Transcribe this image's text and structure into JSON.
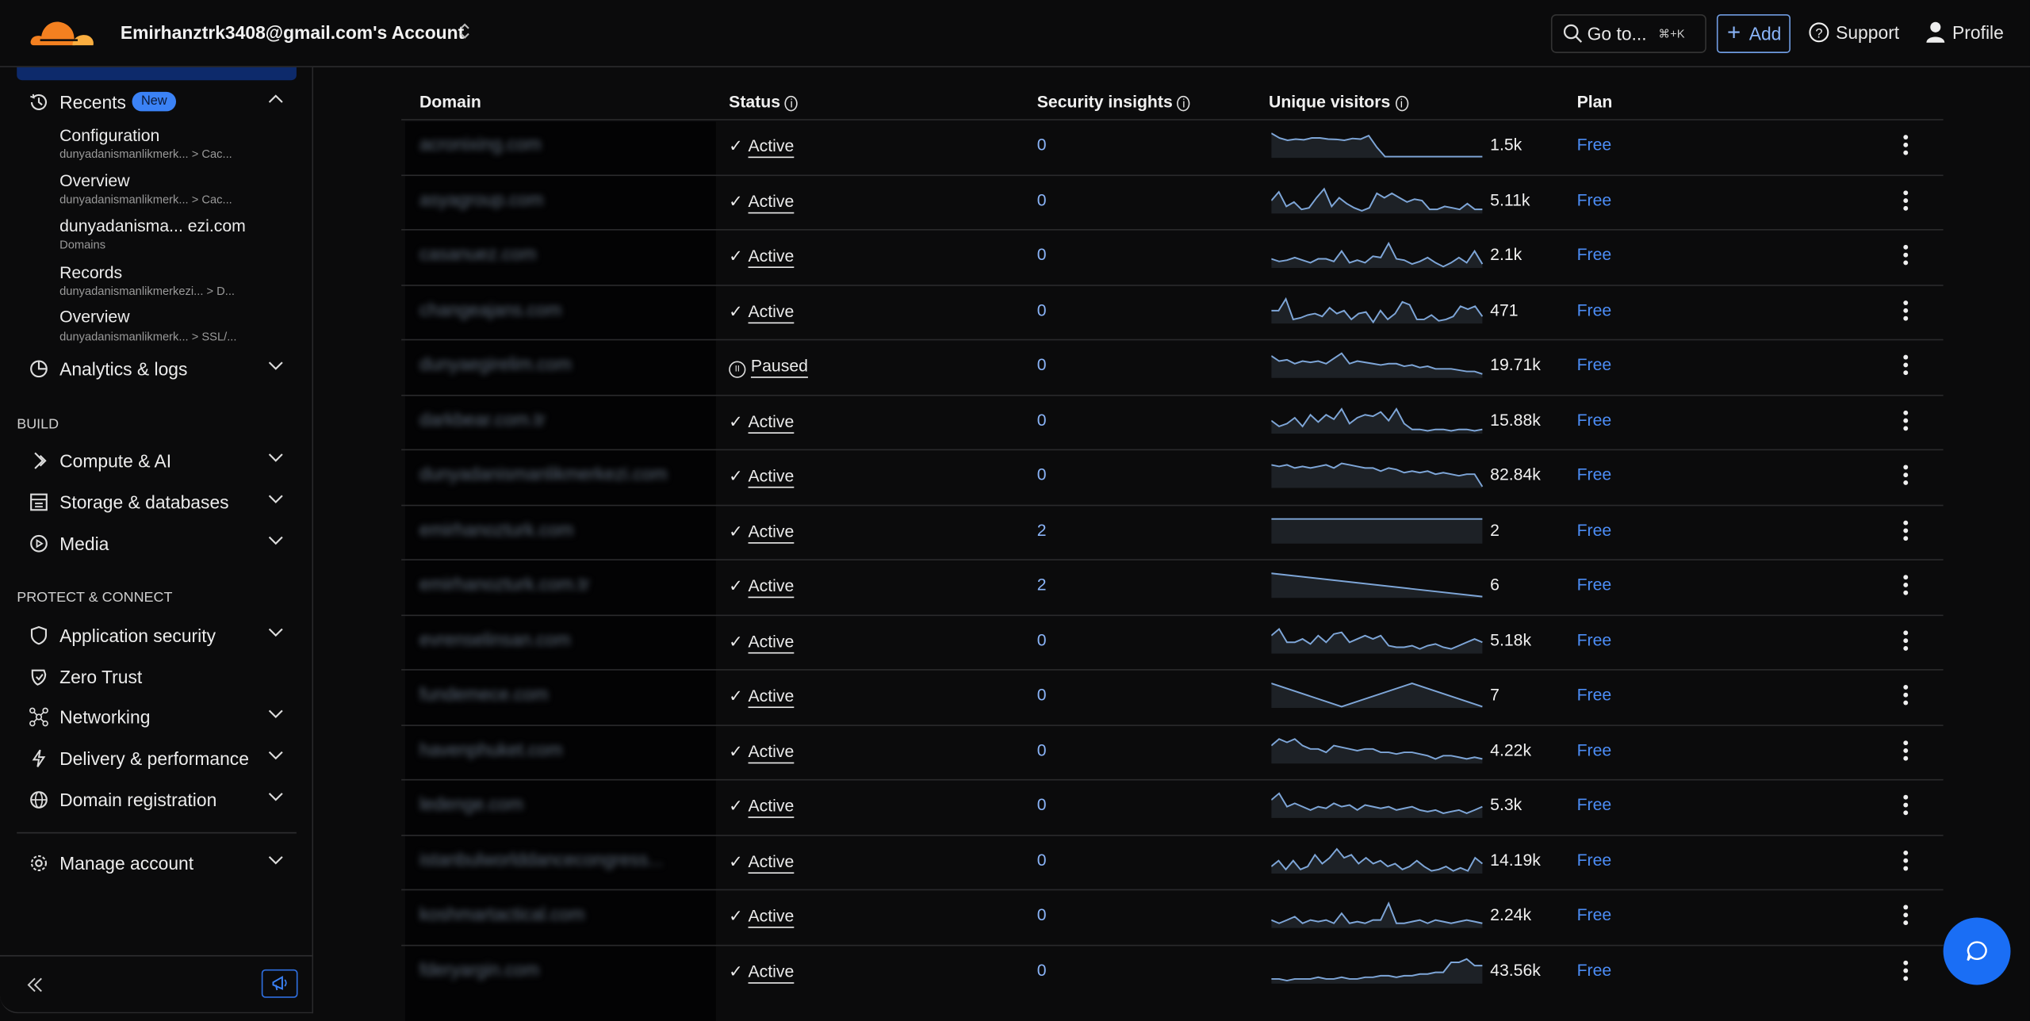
{
  "header": {
    "account": "Emirhanztrk3408@gmail.com's Account",
    "goto_label": "Go to...",
    "goto_shortcut": "⌘+K",
    "add_label": "Add",
    "support_label": "Support",
    "profile_label": "Profile",
    "brand_color": "#f38020"
  },
  "sidebar": {
    "recents": {
      "label": "Recents",
      "badge": "New",
      "items": [
        {
          "title": "Configuration",
          "subtitle": "dunyadanismanlikmerk... > Cac..."
        },
        {
          "title": "Overview",
          "subtitle": "dunyadanismanlikmerk... > Cac..."
        },
        {
          "title": "dunyadanisma... ezi.com",
          "subtitle": "Domains"
        },
        {
          "title": "Records",
          "subtitle": "dunyadanismanlikmerkezi... > D..."
        },
        {
          "title": "Overview",
          "subtitle": "dunyadanismanlikmerk... > SSL/..."
        }
      ]
    },
    "analytics": "Analytics & logs",
    "build_heading": "BUILD",
    "build": [
      "Compute & AI",
      "Storage & databases",
      "Media"
    ],
    "protect_heading": "PROTECT & CONNECT",
    "protect": [
      "Application security",
      "Zero Trust",
      "Networking",
      "Delivery & performance",
      "Domain registration"
    ],
    "manage": "Manage account"
  },
  "table": {
    "columns": {
      "domain": "Domain",
      "status": "Status",
      "security": "Security insights",
      "visitors": "Unique visitors",
      "plan": "Plan"
    },
    "rows": [
      {
        "domain": "acronixing.com",
        "status": "Active",
        "insights": "0",
        "visitors": "1.5k",
        "plan": "Free",
        "trend": [
          10,
          8,
          7,
          7.5,
          7.2,
          8,
          8,
          7.5,
          7.4,
          7,
          7.8,
          7.5,
          9,
          4,
          0,
          0,
          0,
          0,
          0,
          0,
          0,
          0,
          0,
          0,
          0,
          0,
          0
        ]
      },
      {
        "domain": "asyagroup.com",
        "status": "Active",
        "insights": "0",
        "visitors": "5.11k",
        "plan": "Free",
        "trend": [
          4,
          7,
          2,
          3.5,
          1,
          1.5,
          5,
          8,
          2,
          5,
          3,
          1.5,
          0.5,
          1.5,
          6.5,
          5,
          6.5,
          5,
          3.5,
          4.5,
          4,
          1,
          1,
          2,
          1.5,
          1,
          3,
          1,
          1
        ]
      },
      {
        "domain": "casanuez.com",
        "status": "Active",
        "insights": "0",
        "visitors": "2.1k",
        "plan": "Free",
        "trend": [
          3,
          2,
          2.5,
          3.5,
          2.5,
          1.5,
          3,
          3,
          2,
          6,
          1.5,
          2.5,
          1.5,
          4,
          3.5,
          9,
          3,
          2.5,
          1,
          2,
          3.5,
          1.5,
          0,
          1.5,
          3.5,
          1.5,
          6,
          1
        ]
      },
      {
        "domain": "changeajans.com",
        "status": "Active",
        "insights": "0",
        "visitors": "471",
        "plan": "Free",
        "trend": [
          4,
          4,
          8,
          1,
          1.5,
          2.5,
          3,
          2,
          5,
          3,
          4,
          1,
          3,
          3.5,
          0,
          4,
          1,
          3,
          7,
          6,
          1,
          1,
          2.5,
          0.5,
          1,
          2,
          5.5,
          4.5,
          5.5,
          2
        ]
      },
      {
        "domain": "dunyaegirelim.com",
        "status": "Paused",
        "insights": "0",
        "visitors": "19.71k",
        "plan": "Free",
        "trend": [
          8,
          6,
          6.5,
          5,
          6,
          5.5,
          6,
          5,
          7,
          9,
          5,
          6,
          5.5,
          5,
          4.5,
          5,
          5,
          4,
          4.5,
          3.5,
          4,
          3,
          3,
          3,
          2.5,
          2,
          2,
          1
        ]
      },
      {
        "domain": "darkbear.com.tr",
        "status": "Active",
        "insights": "0",
        "visitors": "15.88k",
        "plan": "Free",
        "trend": [
          4,
          2,
          3,
          5,
          2,
          6,
          3.5,
          6,
          4.5,
          8,
          3,
          5,
          6,
          5.5,
          7,
          4,
          8,
          3,
          1,
          1,
          0.5,
          1,
          1,
          0.5,
          1,
          1,
          0.5,
          1
        ]
      },
      {
        "domain": "dunyadanismanlikmerkezi.com",
        "status": "Active",
        "insights": "0",
        "visitors": "82.84k",
        "plan": "Free",
        "trend": [
          7,
          6.5,
          7,
          6,
          6.5,
          6,
          6.5,
          7,
          6,
          7.5,
          7,
          6.5,
          6,
          6,
          5,
          6,
          5.5,
          4.5,
          5,
          4.5,
          5,
          4,
          4.5,
          4,
          3.5,
          4,
          4,
          0
        ]
      },
      {
        "domain": "emirhanozturk.com",
        "status": "Active",
        "insights": "2",
        "visitors": "2",
        "plan": "Free",
        "trend": [
          5,
          5
        ]
      },
      {
        "domain": "emirhanozturk.com.tr",
        "status": "Active",
        "insights": "2",
        "visitors": "6",
        "plan": "Free",
        "trend": [
          10,
          0
        ]
      },
      {
        "domain": "evrenselinsan.com",
        "status": "Active",
        "insights": "0",
        "visitors": "5.18k",
        "plan": "Free",
        "trend": [
          5,
          7,
          3,
          3,
          4,
          2.5,
          5,
          3,
          5.5,
          6,
          3,
          4,
          5,
          4,
          5,
          2,
          1.5,
          1.5,
          2,
          1,
          2,
          2.5,
          1.5,
          1,
          2,
          3,
          4,
          3
        ]
      },
      {
        "domain": "fundemece.com",
        "status": "Active",
        "insights": "0",
        "visitors": "7",
        "plan": "Free",
        "trend": [
          10,
          0,
          10,
          0
        ]
      },
      {
        "domain": "havenphuket.com",
        "status": "Active",
        "insights": "0",
        "visitors": "4.22k",
        "plan": "Free",
        "trend": [
          5,
          7,
          6,
          7,
          5,
          4,
          4,
          3,
          5,
          4.5,
          4,
          3.5,
          4,
          4,
          3,
          3,
          2.5,
          3,
          3,
          2.5,
          2,
          1,
          2,
          2,
          1.5,
          1,
          1.5,
          1
        ]
      },
      {
        "domain": "ledenge.com",
        "status": "Active",
        "insights": "0",
        "visitors": "5.3k",
        "plan": "Free",
        "trend": [
          5,
          7,
          3,
          4,
          3,
          2,
          3,
          2.5,
          4,
          3,
          3.5,
          2,
          3.5,
          3,
          2.5,
          3,
          2,
          2.5,
          3,
          2,
          1.5,
          2,
          1,
          1.5,
          2,
          1,
          2,
          3
        ]
      },
      {
        "domain": "istanbulworlddancecongress...",
        "status": "Active",
        "insights": "0",
        "visitors": "14.19k",
        "plan": "Free",
        "trend": [
          2,
          4,
          1,
          4,
          1,
          2,
          6,
          3,
          5,
          8,
          5,
          6,
          3,
          5,
          3,
          4,
          2,
          3,
          1,
          2,
          4,
          2,
          0.5,
          1,
          2,
          0.5,
          1.5,
          0.5,
          5,
          3
        ]
      },
      {
        "domain": "koshmartactical.com",
        "status": "Active",
        "insights": "0",
        "visitors": "2.24k",
        "plan": "Free",
        "trend": [
          2,
          1,
          2,
          3,
          1,
          2,
          1.5,
          2,
          1,
          4,
          1,
          1.5,
          1,
          2,
          2,
          7,
          1,
          1,
          1.5,
          2,
          1,
          2,
          1.5,
          1,
          1.5,
          2,
          1.5,
          1
        ]
      },
      {
        "domain": "fderyargin.com",
        "status": "Active",
        "insights": "0",
        "visitors": "43.56k",
        "plan": "Free",
        "trend": [
          1,
          1,
          0.5,
          1,
          1,
          1,
          1.5,
          1,
          1,
          1.5,
          1,
          1,
          1.5,
          1.5,
          2,
          2,
          1.5,
          2,
          2,
          2.5,
          2.5,
          3,
          3,
          6,
          6,
          7,
          5,
          5
        ]
      }
    ]
  },
  "colors": {
    "accent": "#8ab4f8",
    "link": "#4c8df6",
    "sparkline": "#7ea6d8",
    "chat_button": "#1a6ef5"
  }
}
